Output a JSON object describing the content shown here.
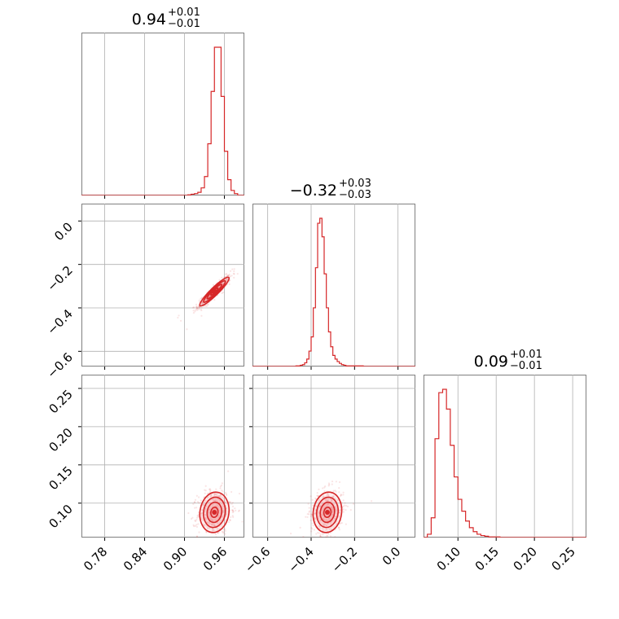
{
  "chart_data": {
    "type": "corner",
    "color": "#d62728",
    "fill_color": "#f4a3a4",
    "grid": true,
    "titles": [
      {
        "value": "0.94",
        "plus": "+0.01",
        "minus": "−0.01"
      },
      {
        "value": "−0.32",
        "plus": "+0.03",
        "minus": "−0.03"
      },
      {
        "value": "0.09",
        "plus": "+0.01",
        "minus": "−0.01"
      }
    ],
    "ranges": [
      [
        0.745,
        0.99
      ],
      [
        -0.67,
        0.08
      ],
      [
        0.055,
        0.268
      ]
    ],
    "ticks": [
      {
        "values": [
          0.78,
          0.84,
          0.9,
          0.96
        ],
        "labels": [
          "0.78",
          "0.84",
          "0.90",
          "0.96"
        ]
      },
      {
        "values": [
          -0.6,
          -0.4,
          -0.2,
          0.0
        ],
        "labels": [
          "−0.6",
          "−0.4",
          "−0.2",
          "0.0"
        ]
      },
      {
        "values": [
          0.1,
          0.15,
          0.2,
          0.25
        ],
        "labels": [
          "0.10",
          "0.15",
          "0.20",
          "0.25"
        ]
      }
    ],
    "histograms": [
      {
        "edges": [
          0.905,
          0.91,
          0.915,
          0.92,
          0.925,
          0.93,
          0.935,
          0.94,
          0.945,
          0.95,
          0.955,
          0.96,
          0.965,
          0.97,
          0.975,
          0.98
        ],
        "counts": [
          1,
          2,
          3,
          5,
          12,
          30,
          82,
          165,
          235,
          235,
          157,
          70,
          25,
          8,
          3
        ]
      },
      {
        "edges": [
          -0.47,
          -0.46,
          -0.45,
          -0.44,
          -0.43,
          -0.42,
          -0.41,
          -0.4,
          -0.39,
          -0.38,
          -0.37,
          -0.36,
          -0.35,
          -0.34,
          -0.33,
          -0.32,
          -0.31,
          -0.3,
          -0.29,
          -0.28,
          -0.27,
          -0.26,
          -0.25,
          -0.24,
          -0.23,
          -0.22,
          -0.21,
          -0.2,
          -0.19,
          -0.18,
          -0.17,
          -0.16
        ],
        "counts": [
          1,
          1,
          2,
          3,
          6,
          12,
          25,
          48,
          95,
          160,
          232,
          240,
          210,
          150,
          95,
          56,
          32,
          18,
          12,
          8,
          5,
          3,
          2,
          1,
          1,
          1,
          1,
          1,
          1,
          1,
          1
        ]
      },
      {
        "edges": [
          0.06,
          0.065,
          0.07,
          0.075,
          0.08,
          0.085,
          0.09,
          0.095,
          0.1,
          0.105,
          0.11,
          0.115,
          0.12,
          0.125,
          0.13,
          0.135,
          0.14,
          0.145,
          0.15,
          0.155
        ],
        "counts": [
          5,
          30,
          150,
          220,
          225,
          195,
          140,
          92,
          58,
          40,
          25,
          15,
          9,
          5,
          3,
          2,
          1,
          1,
          1
        ]
      }
    ],
    "correlations": [
      [
        1,
        0.93,
        0.1
      ],
      [
        0.93,
        1,
        0.1
      ],
      [
        0.1,
        0.1,
        1
      ]
    ],
    "sample_means": [
      0.945,
      -0.325,
      0.088
    ],
    "sample_sds": [
      0.01,
      0.03,
      0.012
    ],
    "spread_ranges": [
      [
        0.86,
        0.99
      ],
      [
        -0.5,
        -0.18
      ],
      [
        0.065,
        0.175
      ]
    ],
    "contour_levels_sigma": [
      0.5,
      1.0,
      1.5,
      2.0
    ]
  }
}
